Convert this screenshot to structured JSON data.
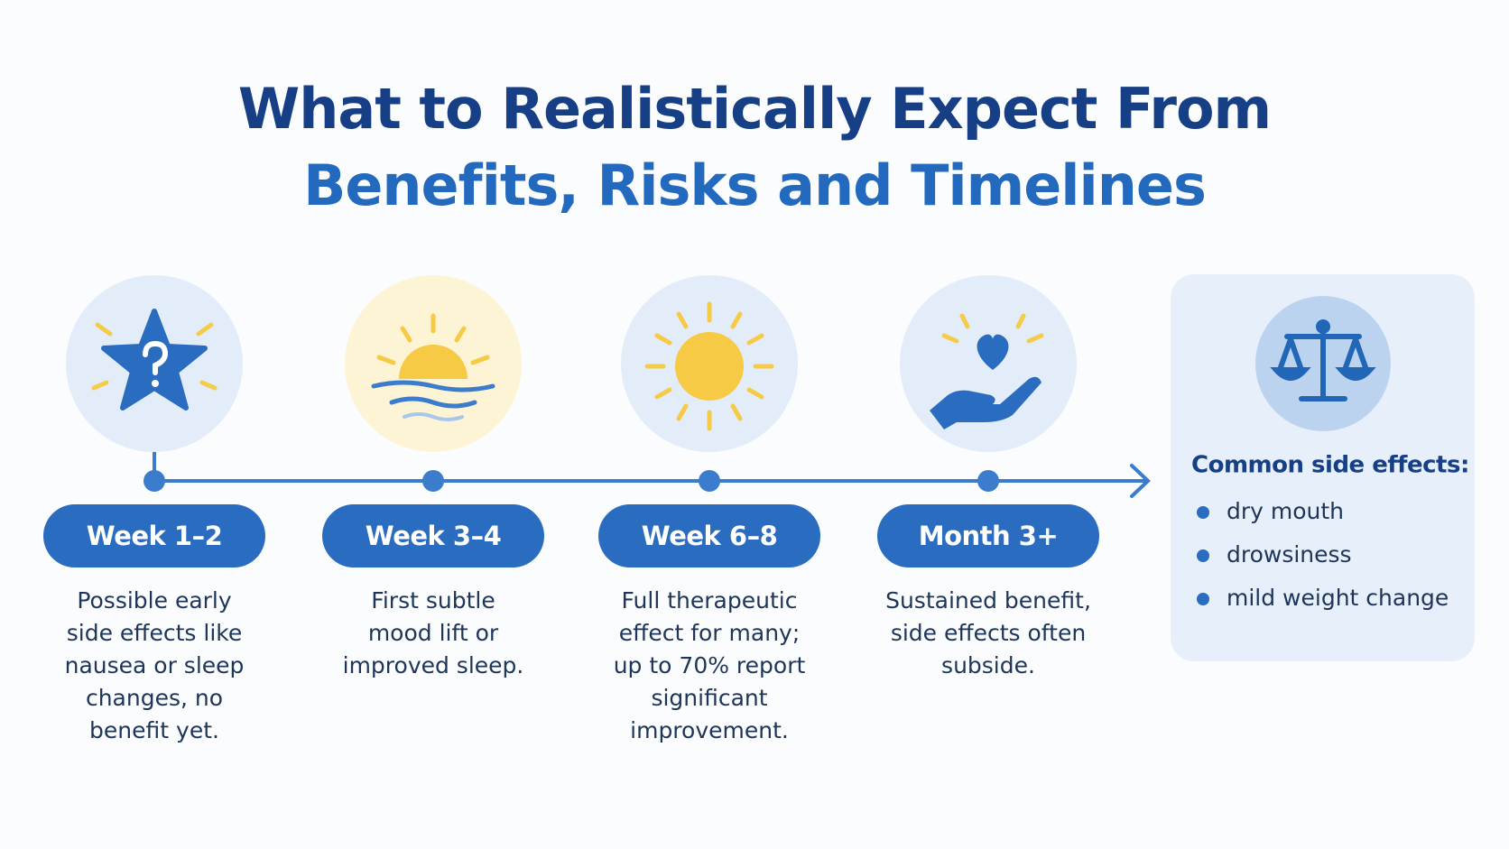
{
  "header": {
    "title_line1": "What to Realistically Expect From",
    "title_line2": "Benefits, Risks and Timelines"
  },
  "steps": [
    {
      "label": "Week 1–2",
      "description": [
        "Possible early",
        "side effects like",
        "nausea or sleep",
        "changes, no",
        "benefit yet."
      ]
    },
    {
      "label": "Week 3–4",
      "description": [
        "First subtle",
        "mood lift or",
        "improved sleep."
      ]
    },
    {
      "label": "Week 6–8",
      "description": [
        "Full therapeutic",
        "effect for many;",
        "up to 70% report",
        "significant",
        "improvement."
      ]
    },
    {
      "label": "Month 3+",
      "description": [
        "Sustained benefit,",
        "side effects often",
        "subside."
      ]
    }
  ],
  "side_panel": {
    "title": "Common side effects:",
    "items": [
      "dry mouth",
      "drowsiness",
      "mild weight change"
    ]
  }
}
